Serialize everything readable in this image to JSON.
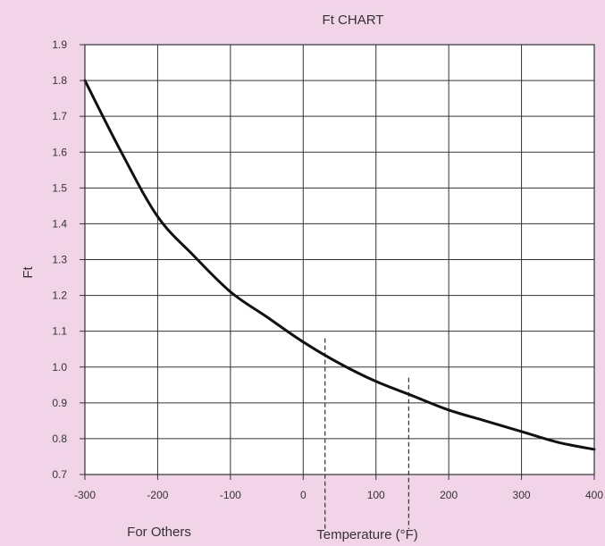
{
  "chart_data": {
    "type": "line",
    "title": "Ft  CHART",
    "xlabel": "Temperature (°F)",
    "ylabel": "Ft",
    "footnote": "For Others",
    "xlim": [
      -300,
      400
    ],
    "ylim": [
      0.7,
      1.9
    ],
    "x_ticks": [
      -300,
      -200,
      -100,
      0,
      100,
      200,
      300,
      400
    ],
    "y_ticks": [
      0.7,
      0.8,
      0.9,
      1.0,
      1.1,
      1.2,
      1.3,
      1.4,
      1.5,
      1.6,
      1.7,
      1.8,
      1.9
    ],
    "x_tick_labels": [
      "-300",
      "-200",
      "-100",
      "0",
      "100",
      "200",
      "300",
      "400"
    ],
    "y_tick_labels": [
      "0.7",
      "0.8",
      "0.9",
      "1.0",
      "1.1",
      "1.2",
      "1.3",
      "1.4",
      "1.5",
      "1.6",
      "1.7",
      "1.8",
      "1.9"
    ],
    "grid": true,
    "series": [
      {
        "x": [
          -300,
          -250,
          -200,
          -150,
          -100,
          -50,
          0,
          50,
          100,
          150,
          200,
          250,
          300,
          350,
          400
        ],
        "y": [
          1.8,
          1.6,
          1.42,
          1.31,
          1.21,
          1.14,
          1.07,
          1.01,
          0.96,
          0.92,
          0.88,
          0.85,
          0.82,
          0.79,
          0.77
        ],
        "color": "#111111"
      }
    ],
    "reference_lines": [
      {
        "x": 30,
        "y_top": 1.08
      },
      {
        "x": 145,
        "y_top": 0.97
      }
    ]
  }
}
